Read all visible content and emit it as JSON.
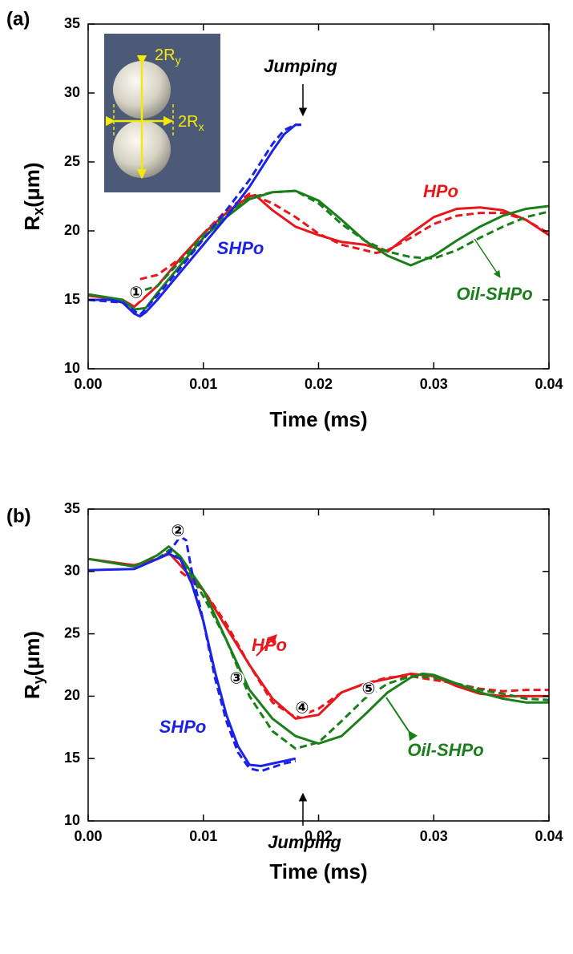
{
  "chart_data": [
    {
      "type": "line",
      "panel_label": "(a)",
      "ylabel": [
        "R",
        "x",
        "(μm)"
      ],
      "xlabel": "Time (ms)",
      "xlim": [
        0,
        0.04
      ],
      "ylim": [
        10,
        35
      ],
      "xticks": [
        {
          "value": 0,
          "label": "0.00"
        },
        0.01,
        0.02,
        0.03,
        0.04
      ],
      "yticks": [
        10,
        15,
        20,
        25,
        30,
        35
      ],
      "series": [
        {
          "color": "#e8171b",
          "dashed": false,
          "x": [
            0,
            0.003,
            0.004,
            0.006,
            0.008,
            0.01,
            0.012,
            0.014,
            0.0145,
            0.016,
            0.018,
            0.02,
            0.022,
            0.024,
            0.026,
            0.028,
            0.03,
            0.032,
            0.034,
            0.036,
            0.038,
            0.04
          ],
          "values": [
            15.3,
            15,
            14.5,
            16,
            18,
            19.8,
            21.3,
            22.5,
            22.6,
            21.5,
            20.3,
            19.7,
            19.2,
            19.0,
            18.5,
            19.8,
            21,
            21.6,
            21.7,
            21.5,
            20.8,
            19.7
          ]
        },
        {
          "color": "#e8171b",
          "dashed": true,
          "x": [
            0.0045,
            0.006,
            0.008,
            0.01,
            0.012,
            0.014,
            0.016,
            0.018,
            0.02,
            0.022,
            0.024,
            0.025,
            0.026,
            0.028,
            0.03,
            0.032,
            0.034,
            0.036,
            0.038,
            0.04
          ],
          "values": [
            16.5,
            16.8,
            18,
            19.8,
            21.5,
            22.7,
            22.0,
            21.0,
            19.8,
            19.0,
            18.6,
            18.4,
            18.6,
            19.5,
            20.5,
            21.1,
            21.3,
            21.3,
            20.8,
            19.8
          ]
        },
        {
          "color": "#1a7f1a",
          "dashed": false,
          "x": [
            0,
            0.003,
            0.004,
            0.005,
            0.006,
            0.008,
            0.01,
            0.012,
            0.014,
            0.016,
            0.018,
            0.02,
            0.022,
            0.024,
            0.026,
            0.028,
            0.03,
            0.032,
            0.034,
            0.036,
            0.038,
            0.04
          ],
          "values": [
            15.4,
            15,
            14.3,
            14.4,
            15.5,
            17.5,
            19.5,
            21,
            22.3,
            22.8,
            22.9,
            22.2,
            20.8,
            19.3,
            18.2,
            17.5,
            18.2,
            19.3,
            20.3,
            21.1,
            21.6,
            21.8
          ]
        },
        {
          "color": "#1a7f1a",
          "dashed": true,
          "x": [
            0.004,
            0.006,
            0.008,
            0.01,
            0.012,
            0.014,
            0.016,
            0.018,
            0.02,
            0.022,
            0.024,
            0.026,
            0.028,
            0.03,
            0.032,
            0.034,
            0.036,
            0.038,
            0.04
          ],
          "values": [
            15.5,
            16,
            17.8,
            19.7,
            21.2,
            22.4,
            22.8,
            22.9,
            22.0,
            20.5,
            19.3,
            18.5,
            18.1,
            18.0,
            18.6,
            19.5,
            20.3,
            21.0,
            21.4
          ]
        },
        {
          "color": "#1b22e6",
          "dashed": false,
          "x": [
            0,
            0.002,
            0.003,
            0.004,
            0.0045,
            0.005,
            0.006,
            0.008,
            0.01,
            0.012,
            0.014,
            0.016,
            0.017,
            0.018,
            0.0185
          ],
          "values": [
            15,
            15,
            14.8,
            14.0,
            13.8,
            14.1,
            15,
            17,
            19,
            21,
            23.2,
            25.8,
            27,
            27.7,
            27.7
          ]
        },
        {
          "color": "#1b22e6",
          "dashed": true,
          "x": [
            0,
            0.003,
            0.0045,
            0.006,
            0.008,
            0.01,
            0.012,
            0.014,
            0.016,
            0.017,
            0.018,
            0.0185
          ],
          "values": [
            15,
            14.8,
            13.9,
            15.3,
            17.3,
            19.4,
            21.5,
            23.7,
            26.3,
            27.3,
            27.7,
            27.7
          ]
        }
      ],
      "annotations": [
        {
          "text": "Jumping",
          "color": "#000000"
        },
        {
          "text": "HPo",
          "color": "#e8171b"
        },
        {
          "text": "SHPo",
          "color": "#1b22e6"
        },
        {
          "text": "Oil-SHPo",
          "color": "#1a7f1a"
        },
        {
          "text": "①",
          "color": "#000000"
        }
      ],
      "inset_labels": [
        [
          "2R",
          "y"
        ],
        [
          "2R",
          "x"
        ]
      ]
    },
    {
      "type": "line",
      "panel_label": "(b)",
      "ylabel": [
        "R",
        "y",
        "(μm)"
      ],
      "xlabel": "Time (ms)",
      "xlim": [
        0,
        0.04
      ],
      "ylim": [
        10,
        35
      ],
      "xticks": [
        {
          "value": 0,
          "label": "0.00"
        },
        0.01,
        0.02,
        0.03,
        0.04
      ],
      "yticks": [
        10,
        15,
        20,
        25,
        30,
        35
      ],
      "series": [
        {
          "color": "#e8171b",
          "dashed": false,
          "x": [
            0,
            0.004,
            0.006,
            0.007,
            0.008,
            0.01,
            0.012,
            0.014,
            0.016,
            0.018,
            0.02,
            0.022,
            0.024,
            0.026,
            0.028,
            0.03,
            0.032,
            0.034,
            0.036,
            0.04
          ],
          "values": [
            31,
            30.5,
            31,
            31.5,
            30.5,
            28.5,
            25.5,
            22.5,
            19.8,
            18.2,
            18.5,
            20.3,
            21,
            21.4,
            21.8,
            21.6,
            20.8,
            20.2,
            20,
            20
          ]
        },
        {
          "color": "#e8171b",
          "dashed": true,
          "x": [
            0.008,
            0.01,
            0.012,
            0.014,
            0.016,
            0.018,
            0.02,
            0.022,
            0.024,
            0.026,
            0.028,
            0.03,
            0.032,
            0.034,
            0.036,
            0.038,
            0.04
          ],
          "values": [
            30,
            28.5,
            25.8,
            22.5,
            19.5,
            18.3,
            19,
            20.3,
            21,
            21.5,
            21.6,
            21.3,
            21,
            20.6,
            20.4,
            20.5,
            20.5
          ]
        },
        {
          "color": "#1a7f1a",
          "dashed": false,
          "x": [
            0,
            0.004,
            0.006,
            0.007,
            0.008,
            0.01,
            0.012,
            0.014,
            0.016,
            0.018,
            0.02,
            0.022,
            0.024,
            0.026,
            0.028,
            0.029,
            0.03,
            0.032,
            0.034,
            0.036,
            0.038,
            0.04
          ],
          "values": [
            31,
            30.4,
            31.3,
            32,
            31.2,
            28.5,
            24.5,
            20.5,
            18.2,
            16.8,
            16.2,
            16.8,
            18.5,
            20.3,
            21.5,
            21.8,
            21.7,
            21,
            20.3,
            19.8,
            19.5,
            19.5
          ]
        },
        {
          "color": "#1a7f1a",
          "dashed": true,
          "x": [
            0.006,
            0.007,
            0.008,
            0.01,
            0.012,
            0.014,
            0.016,
            0.018,
            0.02,
            0.022,
            0.024,
            0.026,
            0.028,
            0.03,
            0.032,
            0.034,
            0.036,
            0.038,
            0.04
          ],
          "values": [
            31,
            31.7,
            31,
            28,
            24.5,
            20,
            17.2,
            15.8,
            16.3,
            18,
            19.8,
            21,
            21.6,
            21.5,
            21,
            20.5,
            20.2,
            19.8,
            19.7
          ]
        },
        {
          "color": "#1b22e6",
          "dashed": false,
          "x": [
            0,
            0.004,
            0.006,
            0.007,
            0.008,
            0.009,
            0.01,
            0.011,
            0.012,
            0.013,
            0.014,
            0.015,
            0.016,
            0.017,
            0.018
          ],
          "values": [
            30.1,
            30.2,
            31,
            31.4,
            31,
            29,
            26,
            22,
            18.5,
            16,
            14.5,
            14.4,
            14.6,
            14.8,
            15.0
          ]
        },
        {
          "color": "#1b22e6",
          "dashed": true,
          "x": [
            0.006,
            0.007,
            0.008,
            0.0085,
            0.009,
            0.01,
            0.011,
            0.012,
            0.013,
            0.014,
            0.015,
            0.016,
            0.017,
            0.018
          ],
          "values": [
            31,
            31.5,
            32.8,
            32.5,
            30,
            26,
            21.5,
            18,
            15.5,
            14.2,
            14.0,
            14.3,
            14.6,
            14.8
          ]
        }
      ],
      "annotations": [
        {
          "text": "②",
          "color": "#000000"
        },
        {
          "text": "③",
          "color": "#000000"
        },
        {
          "text": "HPo",
          "color": "#e8171b"
        },
        {
          "text": "④",
          "color": "#000000"
        },
        {
          "text": "⑤",
          "color": "#000000"
        },
        {
          "text": "SHPo",
          "color": "#1b22e6"
        },
        {
          "text": "Oil-SHPo",
          "color": "#1a7f1a"
        },
        {
          "text": "Jumping",
          "color": "#000000"
        }
      ]
    }
  ]
}
